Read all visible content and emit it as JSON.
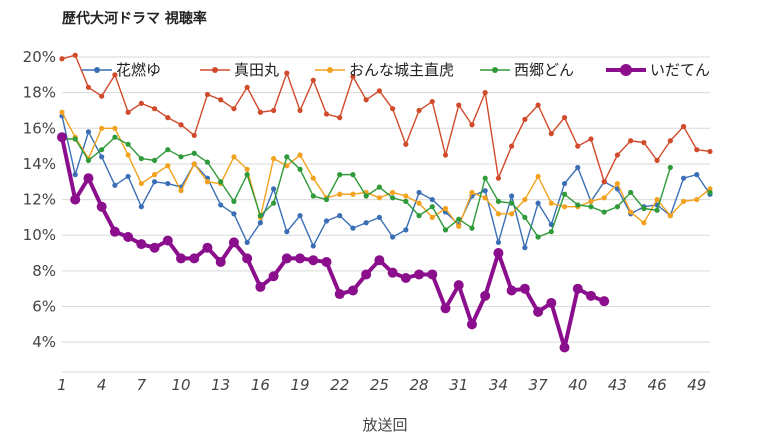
{
  "chart_data": {
    "type": "line",
    "title": "歴代大河ドラマ 視聴率",
    "xlabel": "放送回",
    "ylabel": "",
    "xlim": [
      1,
      50
    ],
    "ylim": [
      3,
      20
    ],
    "yticks": [
      "4%",
      "6%",
      "8%",
      "10%",
      "12%",
      "14%",
      "16%",
      "18%",
      "20%"
    ],
    "ytick_values": [
      4,
      6,
      8,
      10,
      12,
      14,
      16,
      18,
      20
    ],
    "xticks": [
      1,
      4,
      7,
      10,
      13,
      16,
      19,
      22,
      25,
      28,
      31,
      34,
      37,
      40,
      43,
      46,
      49
    ],
    "grid": "horizontal",
    "legend": "top",
    "series": [
      {
        "name": "花燃ゆ",
        "color": "#3a6fb5",
        "values": [
          16.7,
          13.4,
          15.8,
          14.4,
          12.8,
          13.3,
          11.6,
          13.0,
          12.9,
          12.7,
          14.0,
          13.2,
          11.7,
          11.2,
          9.6,
          10.7,
          12.6,
          10.2,
          11.1,
          9.4,
          10.8,
          11.1,
          10.4,
          10.7,
          11.0,
          9.9,
          10.3,
          12.4,
          12.0,
          11.3,
          10.6,
          12.2,
          12.5,
          9.6,
          12.2,
          9.3,
          11.8,
          10.6,
          12.9,
          13.8,
          11.9,
          13.0,
          12.6,
          11.2,
          11.6,
          11.7,
          11.1,
          13.2,
          13.4,
          12.3
        ]
      },
      {
        "name": "真田丸",
        "color": "#d14a2b",
        "values": [
          19.9,
          20.1,
          18.3,
          17.8,
          19.0,
          16.9,
          17.4,
          17.1,
          16.6,
          16.2,
          15.6,
          17.9,
          17.6,
          17.1,
          18.3,
          16.9,
          17.0,
          19.1,
          17.0,
          18.7,
          16.8,
          16.6,
          18.9,
          17.6,
          18.1,
          17.1,
          15.1,
          17.0,
          17.5,
          14.5,
          17.3,
          16.2,
          18.0,
          13.2,
          15.0,
          16.5,
          17.3,
          15.7,
          16.6,
          15.0,
          15.4,
          13.0,
          14.5,
          15.3,
          15.2,
          14.2,
          15.3,
          16.1,
          14.8,
          14.7
        ]
      },
      {
        "name": "おんな城主直虎",
        "color": "#f2a21e",
        "values": [
          16.9,
          15.5,
          14.3,
          16.0,
          16.0,
          14.5,
          12.9,
          13.4,
          13.9,
          12.5,
          14.0,
          13.0,
          12.9,
          14.4,
          13.7,
          11.0,
          14.3,
          13.9,
          14.5,
          13.2,
          12.1,
          12.3,
          12.3,
          12.4,
          12.1,
          12.4,
          12.2,
          11.8,
          11.0,
          11.5,
          10.5,
          12.4,
          12.1,
          11.2,
          11.2,
          12.0,
          13.3,
          11.8,
          11.6,
          11.6,
          11.9,
          12.1,
          12.9,
          11.3,
          10.7,
          12.0,
          11.1,
          11.9,
          12.0,
          12.6
        ]
      },
      {
        "name": "西郷どん",
        "color": "#2e9a39",
        "values": [
          15.4,
          15.4,
          14.2,
          14.8,
          15.5,
          15.1,
          14.3,
          14.2,
          14.8,
          14.4,
          14.6,
          14.1,
          13.0,
          11.9,
          13.4,
          11.1,
          11.8,
          14.4,
          13.7,
          12.2,
          12.0,
          13.4,
          13.4,
          12.2,
          12.7,
          12.1,
          11.9,
          11.1,
          11.6,
          10.3,
          10.9,
          10.4,
          13.2,
          11.9,
          11.8,
          11.0,
          9.9,
          10.2,
          12.3,
          11.7,
          11.6,
          11.3,
          11.6,
          12.4,
          11.5,
          11.4,
          13.8,
          null,
          null,
          12.4
        ]
      },
      {
        "name": "いだてん",
        "color": "#8b0f8c",
        "values": [
          15.5,
          12.0,
          13.2,
          11.6,
          10.2,
          9.9,
          9.5,
          9.3,
          9.7,
          8.7,
          8.7,
          9.3,
          8.5,
          9.6,
          8.7,
          7.1,
          7.7,
          8.7,
          8.7,
          8.6,
          8.5,
          6.7,
          6.9,
          7.8,
          8.6,
          7.9,
          7.6,
          7.8,
          7.8,
          5.9,
          7.2,
          5.0,
          6.6,
          9.0,
          6.9,
          7.0,
          5.7,
          6.2,
          3.7,
          7.0,
          6.6,
          6.3,
          null,
          null,
          null,
          null,
          null,
          null,
          null,
          null
        ]
      }
    ]
  }
}
